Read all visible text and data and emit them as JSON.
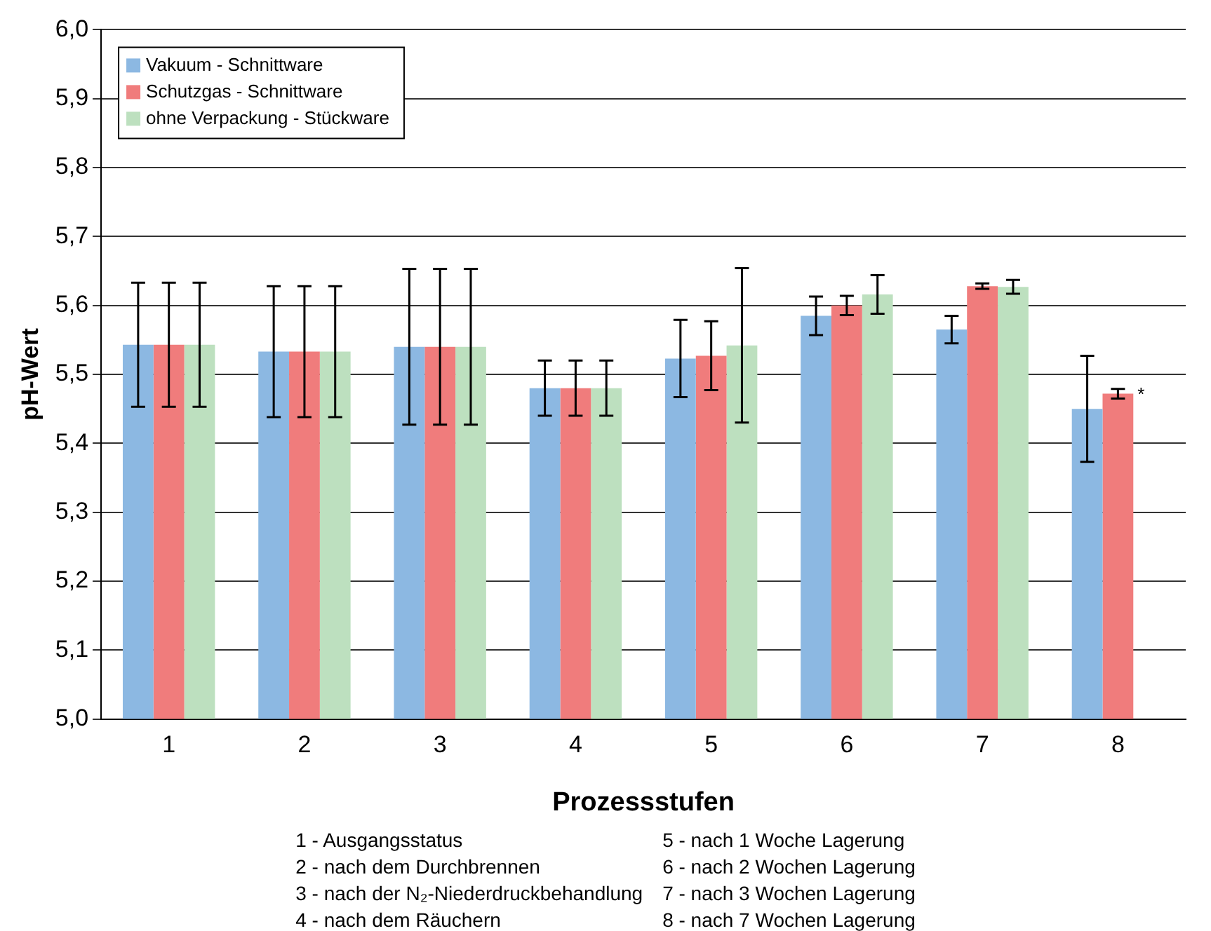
{
  "chart_data": {
    "type": "bar",
    "xlabel": "Prozessstufen",
    "ylabel": "pH-Wert",
    "categories": [
      "1",
      "2",
      "3",
      "4",
      "5",
      "6",
      "7",
      "8"
    ],
    "series": [
      {
        "name": "Vakuum - Schnittware",
        "color": "#8cb8e2",
        "values": [
          5.543,
          5.533,
          5.54,
          5.48,
          5.523,
          5.585,
          5.565,
          5.45
        ],
        "errors": [
          0.09,
          0.095,
          0.113,
          0.04,
          0.056,
          0.028,
          0.02,
          0.077
        ]
      },
      {
        "name": "Schutzgas - Schnittware",
        "color": "#f07c7c",
        "values": [
          5.543,
          5.533,
          5.54,
          5.48,
          5.527,
          5.6,
          5.628,
          5.472
        ],
        "errors": [
          0.09,
          0.095,
          0.113,
          0.04,
          0.05,
          0.014,
          0.004,
          0.007
        ]
      },
      {
        "name": "ohne Verpackung - Stückware",
        "color": "#bde0bf",
        "values": [
          5.543,
          5.533,
          5.54,
          5.48,
          5.542,
          5.616,
          5.627,
          null
        ],
        "errors": [
          0.09,
          0.095,
          0.113,
          0.04,
          0.112,
          0.028,
          0.01,
          null
        ]
      }
    ],
    "ylim": [
      5,
      6
    ],
    "yticks": [
      {
        "value": 5,
        "label": "5,0"
      },
      {
        "value": 5.1,
        "label": "5,1"
      },
      {
        "value": 5.2,
        "label": "5,2"
      },
      {
        "value": 5.3,
        "label": "5,3"
      },
      {
        "value": 5.4,
        "label": "5,4"
      },
      {
        "value": 5.5,
        "label": "5,5"
      },
      {
        "value": 5.6,
        "label": "5,6"
      },
      {
        "value": 5.7,
        "label": "5,7"
      },
      {
        "value": 5.8,
        "label": "5,8"
      },
      {
        "value": 5.9,
        "label": "5,9"
      },
      {
        "value": 6,
        "label": "6,0"
      }
    ],
    "grid": "y",
    "legend": "top left",
    "annotations": [
      {
        "text": "*",
        "x": "8",
        "y": 5.47
      },
      "1 - Ausgangsstatus",
      "2 - nach dem Durchbrennen",
      "3 - nach der N₂-Niederdruckbehandlung",
      "4 - nach dem Räuchern",
      "5 - nach 1 Woche Lagerung",
      "6 - nach 2 Wochen Lagerung",
      "7 - nach 3 Wochen Lagerung",
      "8 - nach 7 Wochen Lagerung"
    ]
  }
}
